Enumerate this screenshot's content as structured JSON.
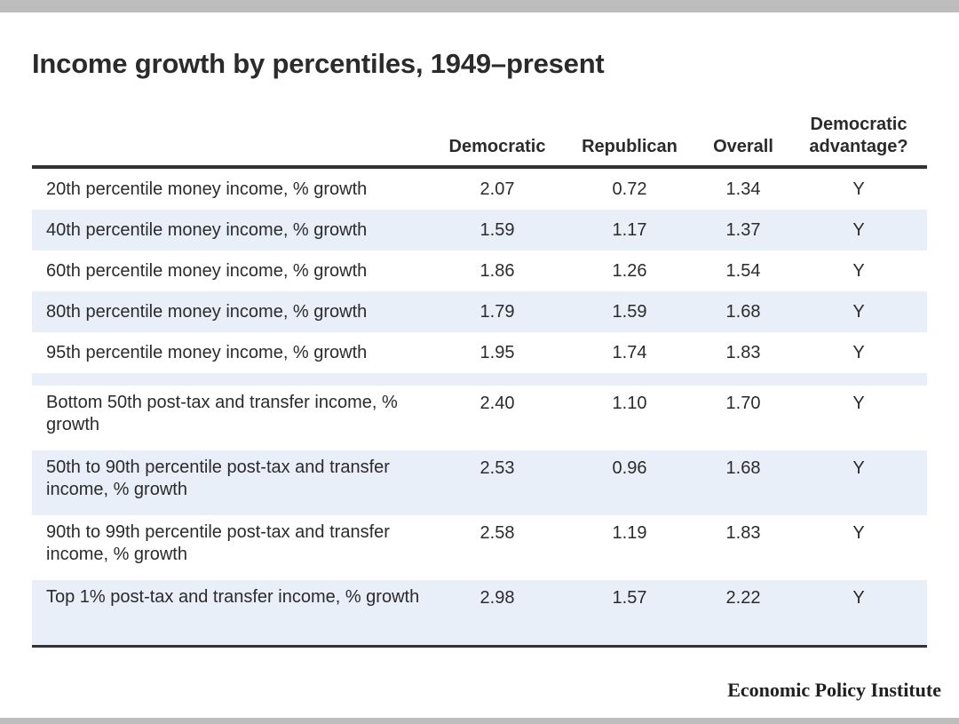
{
  "chart_data": {
    "type": "table",
    "title": "Income growth by percentiles, 1949–present",
    "columns": [
      "",
      "Democratic",
      "Republican",
      "Overall",
      "Democratic advantage?"
    ],
    "rows": [
      {
        "label": "20th percentile money income, % growth",
        "democratic": "2.07",
        "republican": "0.72",
        "overall": "1.34",
        "advantage": "Y"
      },
      {
        "label": "40th percentile money income, % growth",
        "democratic": "1.59",
        "republican": "1.17",
        "overall": "1.37",
        "advantage": "Y"
      },
      {
        "label": "60th percentile money income, % growth",
        "democratic": "1.86",
        "republican": "1.26",
        "overall": "1.54",
        "advantage": "Y"
      },
      {
        "label": "80th percentile money income, % growth",
        "democratic": "1.79",
        "republican": "1.59",
        "overall": "1.68",
        "advantage": "Y"
      },
      {
        "label": "95th percentile money income, % growth",
        "democratic": "1.95",
        "republican": "1.74",
        "overall": "1.83",
        "advantage": "Y"
      },
      {
        "label": "Bottom 50th post-tax and transfer income, % growth",
        "democratic": "2.40",
        "republican": "1.10",
        "overall": "1.70",
        "advantage": "Y"
      },
      {
        "label": "50th to 90th percentile post-tax and transfer income, % growth",
        "democratic": "2.53",
        "republican": "0.96",
        "overall": "1.68",
        "advantage": "Y"
      },
      {
        "label": "90th to 99th percentile post-tax and transfer income, % growth",
        "democratic": "2.58",
        "republican": "1.19",
        "overall": "1.83",
        "advantage": "Y"
      },
      {
        "label": "Top 1% post-tax and transfer income, % growth",
        "democratic": "2.98",
        "republican": "1.57",
        "overall": "2.22",
        "advantage": "Y"
      }
    ]
  },
  "source": "Economic Policy Institute"
}
